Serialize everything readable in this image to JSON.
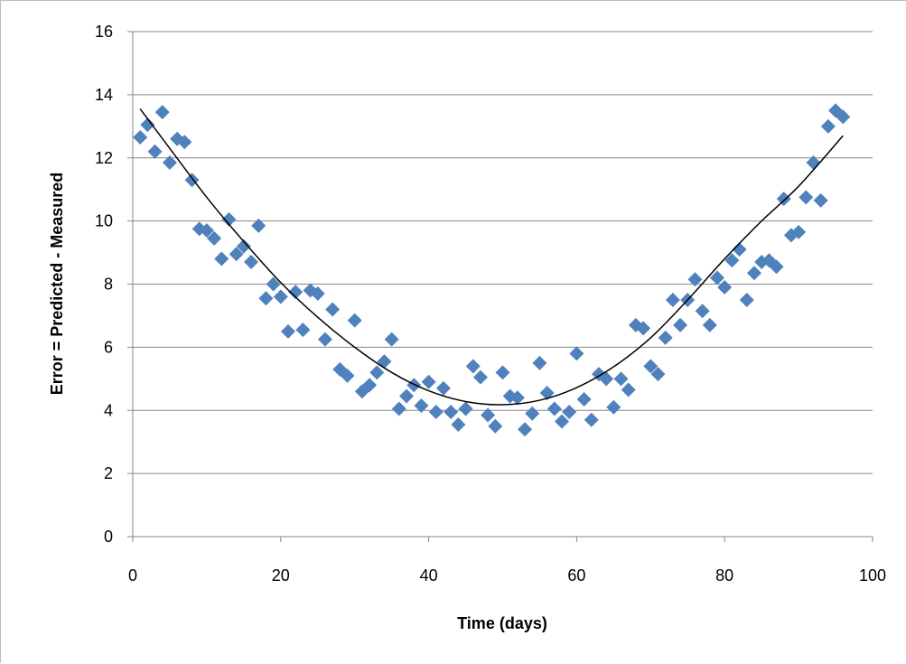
{
  "chart_data": {
    "type": "scatter",
    "title": "",
    "xlabel": "Time (days)",
    "ylabel": "Error = Predicted - Measured",
    "xlim": [
      0,
      100
    ],
    "ylim": [
      0,
      16
    ],
    "xticks": [
      0,
      20,
      40,
      60,
      80,
      100
    ],
    "yticks": [
      0,
      2,
      4,
      6,
      8,
      10,
      12,
      14,
      16
    ],
    "grid": "horizontal",
    "legend": "none",
    "marker": "diamond",
    "marker_color": "#4f81bd",
    "trendline": {
      "type": "polynomial",
      "color": "#000000",
      "x_range": [
        1,
        96
      ],
      "points": [
        [
          1,
          13.55
        ],
        [
          5,
          12.3
        ],
        [
          10,
          10.75
        ],
        [
          15,
          9.35
        ],
        [
          20,
          8.05
        ],
        [
          25,
          6.95
        ],
        [
          30,
          6.0
        ],
        [
          35,
          5.2
        ],
        [
          40,
          4.62
        ],
        [
          45,
          4.28
        ],
        [
          50,
          4.18
        ],
        [
          55,
          4.32
        ],
        [
          60,
          4.72
        ],
        [
          65,
          5.38
        ],
        [
          70,
          6.3
        ],
        [
          75,
          7.5
        ],
        [
          80,
          8.8
        ],
        [
          85,
          10.0
        ],
        [
          90,
          11.1
        ],
        [
          96,
          12.7
        ]
      ]
    },
    "x": [
      1,
      2,
      3,
      4,
      5,
      6,
      7,
      8,
      9,
      10,
      11,
      12,
      13,
      14,
      15,
      16,
      17,
      18,
      19,
      20,
      21,
      22,
      23,
      24,
      25,
      26,
      27,
      28,
      29,
      30,
      31,
      32,
      33,
      34,
      35,
      36,
      37,
      38,
      39,
      40,
      41,
      42,
      43,
      44,
      45,
      46,
      47,
      48,
      49,
      50,
      51,
      52,
      53,
      54,
      55,
      56,
      57,
      58,
      59,
      60,
      61,
      62,
      63,
      64,
      65,
      66,
      67,
      68,
      69,
      70,
      71,
      72,
      73,
      74,
      75,
      76,
      77,
      78,
      79,
      80,
      81,
      82,
      83,
      84,
      85,
      86,
      87,
      88,
      89,
      90,
      91,
      92,
      93,
      94,
      95,
      96
    ],
    "y": [
      12.65,
      13.05,
      12.2,
      13.45,
      11.85,
      12.6,
      12.5,
      11.3,
      9.75,
      9.7,
      9.45,
      8.8,
      10.05,
      8.95,
      9.2,
      8.7,
      9.85,
      7.55,
      8.0,
      7.6,
      6.5,
      7.75,
      6.55,
      7.8,
      7.7,
      6.25,
      7.2,
      5.3,
      5.1,
      6.85,
      4.6,
      4.8,
      5.2,
      5.55,
      6.25,
      4.05,
      4.45,
      4.8,
      4.15,
      4.9,
      3.95,
      4.7,
      3.95,
      3.55,
      4.05,
      5.4,
      5.05,
      3.85,
      3.5,
      5.2,
      4.45,
      4.4,
      3.4,
      3.9,
      5.5,
      4.55,
      4.05,
      3.65,
      3.95,
      5.8,
      4.35,
      3.7,
      5.15,
      5.0,
      4.1,
      5.0,
      4.65,
      6.7,
      6.6,
      5.4,
      5.15,
      6.3,
      7.5,
      6.7,
      7.5,
      8.15,
      7.15,
      6.7,
      8.2,
      7.9,
      8.75,
      9.1,
      7.5,
      8.35,
      8.7,
      8.75,
      8.55,
      10.7,
      9.55,
      9.65,
      10.75,
      11.85,
      10.65,
      13.0,
      13.5,
      13.3
    ]
  }
}
